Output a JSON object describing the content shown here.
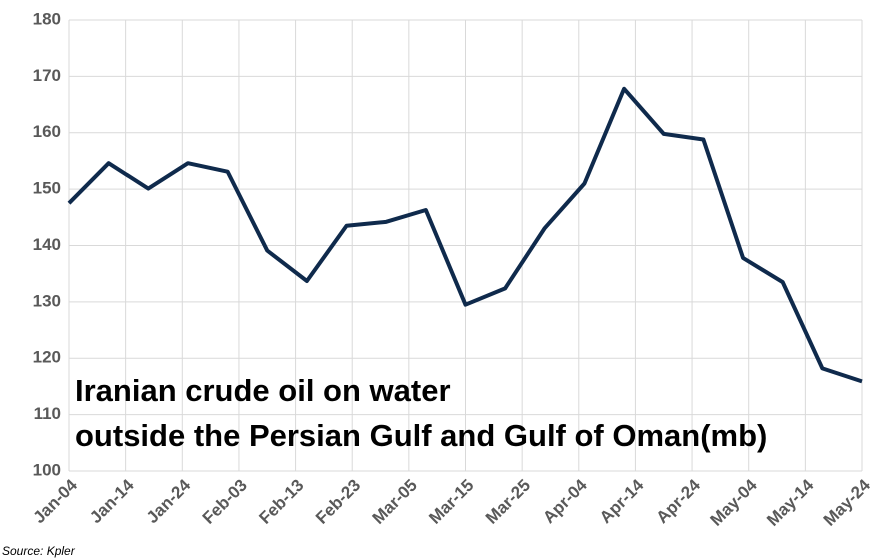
{
  "chart_data": {
    "type": "line",
    "annotation": [
      "Iranian crude oil on water",
      "outside the Persian Gulf and Gulf of Oman(mb)"
    ],
    "source": "Source: Kpler",
    "x": [
      0,
      7,
      14,
      21,
      28,
      35,
      42,
      49,
      56,
      63,
      70,
      77,
      84,
      91,
      98,
      105,
      112,
      119,
      126,
      133,
      140
    ],
    "series": [
      {
        "name": "Iranian crude oil on water",
        "color": "#0f2a4c",
        "values": [
          147.5,
          154.6,
          150.1,
          154.6,
          153.1,
          139.1,
          133.7,
          143.5,
          144.2,
          146.3,
          129.5,
          132.4,
          143.1,
          151.0,
          167.8,
          159.8,
          158.8,
          137.8,
          133.5,
          118.2,
          115.9
        ]
      }
    ],
    "xlim": [
      0,
      140
    ],
    "xticks": [
      {
        "value": 0,
        "label": "Jan-04"
      },
      {
        "value": 10,
        "label": "Jan-14"
      },
      {
        "value": 20,
        "label": "Jan-24"
      },
      {
        "value": 30,
        "label": "Feb-03"
      },
      {
        "value": 40,
        "label": "Feb-13"
      },
      {
        "value": 50,
        "label": "Feb-23"
      },
      {
        "value": 60,
        "label": "Mar-05"
      },
      {
        "value": 70,
        "label": "Mar-15"
      },
      {
        "value": 80,
        "label": "Mar-25"
      },
      {
        "value": 90,
        "label": "Apr-04"
      },
      {
        "value": 100,
        "label": "Apr-14"
      },
      {
        "value": 110,
        "label": "Apr-24"
      },
      {
        "value": 120,
        "label": "May-04"
      },
      {
        "value": 130,
        "label": "May-14"
      },
      {
        "value": 140,
        "label": "May-24"
      }
    ],
    "ylim": [
      100,
      180
    ],
    "yticks": [
      100,
      110,
      120,
      130,
      140,
      150,
      160,
      170,
      180
    ],
    "grid": true
  }
}
